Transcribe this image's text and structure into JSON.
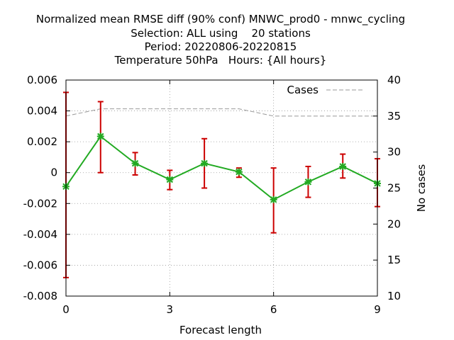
{
  "chart_data": {
    "type": "line",
    "title_lines": [
      "Normalized mean RMSE diff (90% conf) MNWC_prod0 - mnwc_cycling",
      "Selection: ALL using    20 stations",
      "Period: 20220806-20220815",
      "Temperature 50hPa   Hours: {All hours}"
    ],
    "xlabel": "Forecast length",
    "ylabel": "",
    "y2label": "No cases",
    "xlim": [
      0,
      9
    ],
    "ylim": [
      -0.008,
      0.006
    ],
    "y2lim": [
      10,
      40
    ],
    "x_ticks": [
      "0",
      "3",
      "6",
      "9"
    ],
    "y_ticks": [
      "-0.008",
      "-0.006",
      "-0.004",
      "-0.002",
      "0",
      "0.002",
      "0.004",
      "0.006"
    ],
    "y2_ticks": [
      "10",
      "15",
      "20",
      "25",
      "30",
      "35",
      "40"
    ],
    "grid": true,
    "legend_position": "top-right",
    "series": [
      {
        "name": "",
        "axis": "y",
        "color": "#22aa22",
        "error_color": "#cc0000",
        "x": [
          0,
          1,
          2,
          3,
          4,
          5,
          6,
          7,
          8,
          9
        ],
        "values": [
          -0.0009,
          0.00235,
          0.0006,
          -0.00045,
          0.0006,
          5e-05,
          -0.00175,
          -0.0006,
          0.0004,
          -0.0007
        ],
        "lower": [
          -0.0068,
          0.0,
          -0.00015,
          -0.0011,
          -0.001,
          -0.0003,
          -0.0039,
          -0.0016,
          -0.00035,
          -0.0022
        ],
        "upper": [
          0.0052,
          0.0046,
          0.0013,
          0.00015,
          0.0022,
          0.0003,
          0.0003,
          0.0004,
          0.0012,
          0.0009
        ]
      },
      {
        "name": "Cases",
        "axis": "y2",
        "color": "#999999",
        "x": [
          0,
          1,
          2,
          3,
          4,
          5,
          6,
          7,
          8,
          9
        ],
        "values": [
          35,
          36,
          36,
          36,
          36,
          36,
          35,
          35,
          35,
          35
        ]
      }
    ]
  }
}
